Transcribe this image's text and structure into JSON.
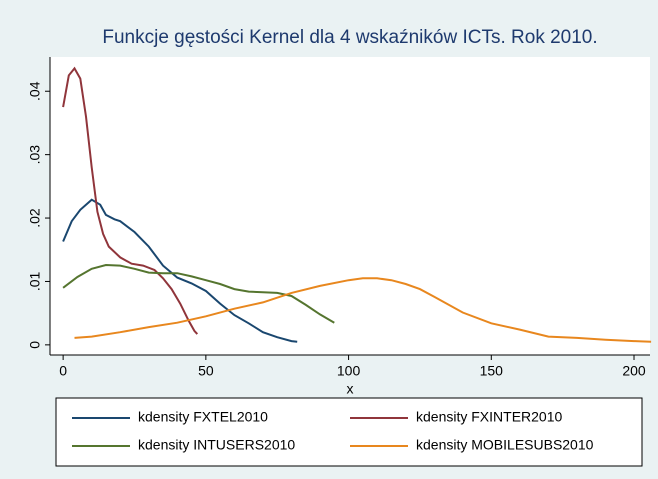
{
  "chart_data": {
    "type": "line",
    "title": "Funkcje gęstości Kernel dla 4 wskaźników ICTs. Rok 2010.",
    "x_label": "x",
    "xlim": [
      -4.6,
      205.6
    ],
    "xticks": [
      0,
      50,
      100,
      150,
      200
    ],
    "ylim": [
      -0.0016,
      0.0454
    ],
    "yticks": [
      0,
      {
        "value": 0.01,
        "label": ".01"
      },
      {
        "value": 0.02,
        "label": ".02"
      },
      {
        "value": 0.03,
        "label": ".03"
      },
      {
        "value": 0.04,
        "label": ".04"
      }
    ],
    "series": [
      {
        "name": "kdensity FXTEL2010",
        "color": "#1a476f",
        "x": [
          0,
          3,
          6,
          10,
          13,
          15,
          18,
          20,
          25,
          30,
          35,
          40,
          45,
          50,
          55,
          60,
          65,
          70,
          75,
          80,
          82
        ],
        "values": [
          0.0163,
          0.0195,
          0.0213,
          0.0229,
          0.0221,
          0.0205,
          0.0198,
          0.0195,
          0.0178,
          0.0155,
          0.0125,
          0.0106,
          0.0097,
          0.0085,
          0.0065,
          0.0047,
          0.0034,
          0.002,
          0.0012,
          0.0006,
          0.0005
        ]
      },
      {
        "name": "kdensity FXINTER2010",
        "color": "#90353b",
        "x": [
          0,
          2,
          4,
          6,
          8,
          10,
          12,
          14,
          16,
          20,
          24,
          28,
          32,
          35,
          38,
          41,
          44,
          46,
          47
        ],
        "values": [
          0.0375,
          0.0425,
          0.0436,
          0.042,
          0.036,
          0.028,
          0.021,
          0.0175,
          0.0155,
          0.0138,
          0.0128,
          0.0125,
          0.0118,
          0.0105,
          0.0088,
          0.0065,
          0.0038,
          0.0022,
          0.0017
        ]
      },
      {
        "name": "kdensity INTUSERS2010",
        "color": "#55752f",
        "x": [
          0,
          5,
          10,
          15,
          20,
          25,
          30,
          35,
          40,
          45,
          50,
          55,
          60,
          65,
          70,
          75,
          80,
          85,
          90,
          95
        ],
        "values": [
          0.009,
          0.0107,
          0.012,
          0.0126,
          0.0125,
          0.012,
          0.0114,
          0.0113,
          0.0113,
          0.0108,
          0.0102,
          0.0096,
          0.0088,
          0.0084,
          0.0083,
          0.0082,
          0.0077,
          0.0063,
          0.0048,
          0.0035
        ]
      },
      {
        "name": "kdensity MOBILESUBS2010",
        "color": "#e8871e",
        "x": [
          4,
          10,
          20,
          30,
          40,
          50,
          60,
          70,
          80,
          90,
          100,
          105,
          110,
          115,
          120,
          125,
          130,
          140,
          150,
          160,
          170,
          180,
          190,
          200,
          206
        ],
        "values": [
          0.0011,
          0.0013,
          0.002,
          0.0028,
          0.0035,
          0.0045,
          0.0057,
          0.0067,
          0.0082,
          0.0093,
          0.0102,
          0.0105,
          0.0105,
          0.0102,
          0.0096,
          0.0088,
          0.0076,
          0.0051,
          0.0034,
          0.0024,
          0.0013,
          0.0011,
          0.0008,
          0.0006,
          0.0005
        ]
      }
    ]
  }
}
